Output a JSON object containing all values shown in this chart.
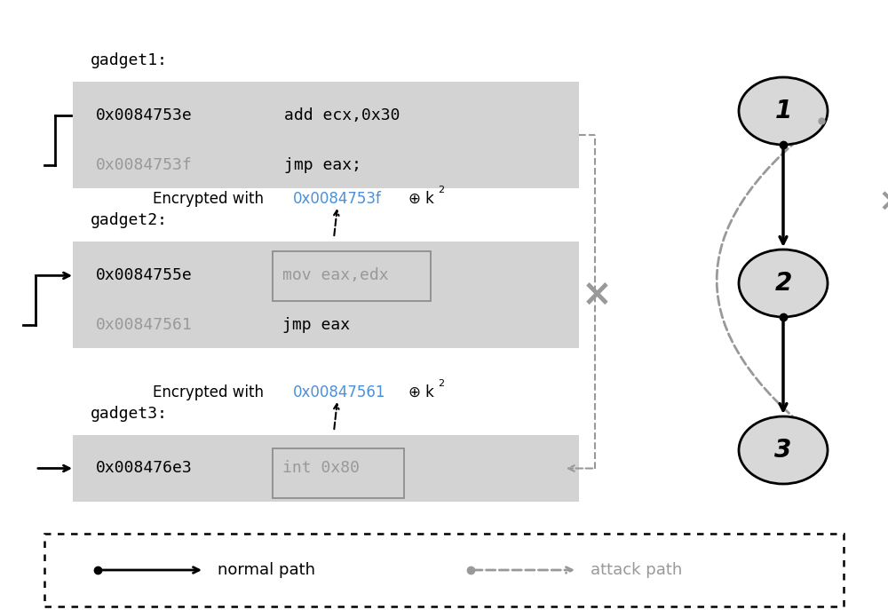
{
  "bg_color": "#ffffff",
  "gadget_bg": "#d3d3d3",
  "box_border": "#888888",
  "normal_color": "#000000",
  "gray_color": "#999999",
  "blue_color": "#4a90d9",
  "node_fill": "#d8d8d8",
  "gadget1_label": "gadget1:",
  "gadget2_label": "gadget2:",
  "gadget3_label": "gadget3:",
  "g1_addr1": "0x0084753e",
  "g1_inst1": "add ecx,0x30",
  "g1_addr2": "0x0084753f",
  "g1_inst2": "jmp eax;",
  "g2_addr1": "0x0084755e",
  "g2_inst1": "mov eax,edx",
  "g2_addr2": "0x00847561",
  "g2_inst2": "jmp eax",
  "g3_addr1": "0x008476e3",
  "g3_inst1": "int 0x80",
  "enc1_prefix": "Encrypted with ",
  "enc1_addr": "0x0084753f",
  "enc2_prefix": "Encrypted with ",
  "enc2_addr": "0x00847561",
  "legend_normal": "normal path",
  "legend_attack": "attack path",
  "node1_label": "1",
  "node2_label": "2",
  "node3_label": "3"
}
